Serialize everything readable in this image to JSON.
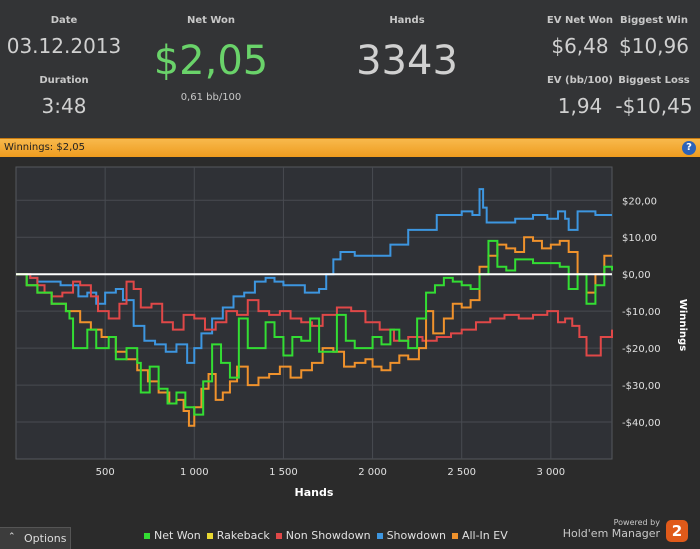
{
  "stats": {
    "date_label": "Date",
    "date_value": "03.12.2013",
    "duration_label": "Duration",
    "duration_value": "3:48",
    "net_won_label": "Net Won",
    "net_won_value": "$2,05",
    "bb_per_100": "0,61 bb/100",
    "hands_label": "Hands",
    "hands_value": "3343",
    "ev_net_won_label": "EV Net Won",
    "ev_net_won_value": "$6,48",
    "biggest_win_label": "Biggest Win",
    "biggest_win_value": "$10,96",
    "ev_bb_label": "EV (bb/100)",
    "ev_bb_value": "1,94",
    "biggest_loss_label": "Biggest Loss",
    "biggest_loss_value": "-$10,45"
  },
  "titlebar": {
    "text": "Winnings: $2,05",
    "help_icon": "?"
  },
  "options": {
    "label": "Options",
    "icon": "chevron-up-icon"
  },
  "brand": {
    "powered": "Powered by",
    "name": "Hold'em Manager",
    "logo": "2"
  },
  "colors": {
    "net_won": "#33dd33",
    "rakeback": "#e8d832",
    "non_showdown": "#e04848",
    "showdown": "#3d96e0",
    "all_in_ev": "#f0922c",
    "zero_line": "#ffffff",
    "plot_bg": "#2f3136"
  },
  "chart_data": {
    "type": "line",
    "xlabel": "Hands",
    "ylabel": "Winnings",
    "x_ticks": [
      500,
      1000,
      1500,
      2000,
      2500,
      3000
    ],
    "x_tick_labels": [
      "500",
      "1 000",
      "1 500",
      "2 000",
      "2 500",
      "3 000"
    ],
    "y_ticks": [
      20,
      10,
      0,
      -10,
      -20,
      -30,
      -40
    ],
    "y_tick_labels": [
      "$20,00",
      "$10,00",
      "$0,00",
      "-$10,00",
      "-$20,00",
      "-$30,00",
      "-$40,00"
    ],
    "xlim": [
      0,
      3343
    ],
    "ylim": [
      -50,
      29
    ],
    "grid": true,
    "legend_position": "bottom",
    "series": [
      {
        "name": "Net Won",
        "key": "net_won",
        "x": [
          0,
          60,
          120,
          200,
          280,
          300,
          320,
          400,
          450,
          520,
          560,
          620,
          680,
          700,
          750,
          800,
          850,
          900,
          950,
          1000,
          1050,
          1100,
          1150,
          1200,
          1250,
          1300,
          1400,
          1450,
          1500,
          1550,
          1600,
          1650,
          1700,
          1800,
          1850,
          1900,
          2000,
          2050,
          2100,
          2150,
          2200,
          2250,
          2300,
          2350,
          2400,
          2450,
          2500,
          2550,
          2600,
          2650,
          2700,
          2750,
          2800,
          2900,
          3000,
          3050,
          3100,
          3150,
          3200,
          3250,
          3300,
          3343
        ],
        "y": [
          0,
          -3,
          -5,
          -8,
          -10,
          -12,
          -20,
          -15,
          -20,
          -17,
          -23,
          -20,
          -24,
          -32,
          -25,
          -31,
          -35,
          -32,
          -36,
          -38,
          -29,
          -19,
          -24,
          -28,
          -12,
          -20,
          -13,
          -17,
          -22,
          -17,
          -18,
          -12,
          -21,
          -11,
          -18,
          -20,
          -17,
          -19,
          -15,
          -18,
          -20,
          -12,
          -5,
          -3,
          -1,
          -2,
          -3,
          -4,
          0,
          9,
          2,
          1,
          4,
          3,
          3,
          2,
          -4,
          0,
          -8,
          -3,
          2,
          1
        ]
      },
      {
        "name": "Rakeback",
        "key": "rakeback",
        "x": [
          0,
          3343
        ],
        "y": [
          0,
          0
        ]
      },
      {
        "name": "Non Showdown",
        "key": "non_showdown",
        "x": [
          0,
          40,
          80,
          120,
          160,
          200,
          260,
          320,
          360,
          420,
          460,
          520,
          580,
          620,
          660,
          700,
          760,
          820,
          880,
          940,
          1000,
          1060,
          1120,
          1180,
          1240,
          1300,
          1360,
          1420,
          1480,
          1540,
          1600,
          1660,
          1720,
          1800,
          1880,
          1960,
          2040,
          2120,
          2200,
          2280,
          2360,
          2440,
          2500,
          2580,
          2660,
          2740,
          2820,
          2900,
          2980,
          3040,
          3080,
          3120,
          3160,
          3200,
          3240,
          3280,
          3343
        ],
        "y": [
          0,
          0,
          -1,
          -3,
          -5,
          -6,
          -5,
          -2,
          -3,
          -6,
          -10,
          -12,
          -8,
          -2,
          -4,
          -9,
          -8,
          -13,
          -15,
          -11,
          -12,
          -15,
          -13,
          -10,
          -11,
          -7,
          -10,
          -11,
          -10,
          -12,
          -13,
          -14,
          -11,
          -9,
          -10,
          -13,
          -15,
          -18,
          -17,
          -18,
          -17,
          -16,
          -15,
          -13,
          -12,
          -11,
          -12,
          -11,
          -10,
          -13,
          -12,
          -14,
          -17,
          -22,
          -22,
          -17,
          -15
        ]
      },
      {
        "name": "Showdown",
        "key": "showdown",
        "x": [
          0,
          80,
          120,
          200,
          250,
          300,
          350,
          400,
          450,
          500,
          560,
          600,
          660,
          720,
          780,
          840,
          900,
          960,
          1000,
          1040,
          1100,
          1160,
          1220,
          1280,
          1340,
          1400,
          1450,
          1500,
          1560,
          1620,
          1700,
          1740,
          1780,
          1820,
          1900,
          2000,
          2100,
          2200,
          2300,
          2360,
          2400,
          2440,
          2500,
          2560,
          2600,
          2620,
          2640,
          2700,
          2800,
          2900,
          2980,
          3040,
          3080,
          3100,
          3150,
          3200,
          3250,
          3343
        ],
        "y": [
          0,
          -1,
          -2,
          -2,
          -3,
          -3,
          -6,
          -5,
          -8,
          -5,
          -4,
          -7,
          -14,
          -18,
          -19,
          -21,
          -19,
          -24,
          -20,
          -16,
          -12,
          -9,
          -6,
          -5,
          -2,
          -1,
          -2,
          -3,
          -3,
          -5,
          -4,
          0,
          4,
          6,
          5,
          5,
          8,
          12,
          12,
          16,
          16,
          16,
          17,
          16,
          23,
          18,
          14,
          14,
          15,
          16,
          15,
          17,
          15,
          12,
          17,
          17,
          16,
          16
        ]
      },
      {
        "name": "All-In EV",
        "key": "all_in_ev",
        "x": [
          0,
          60,
          120,
          200,
          280,
          360,
          420,
          480,
          560,
          620,
          680,
          740,
          800,
          860,
          900,
          940,
          970,
          1000,
          1040,
          1080,
          1120,
          1160,
          1200,
          1240,
          1300,
          1360,
          1420,
          1480,
          1540,
          1600,
          1660,
          1720,
          1780,
          1840,
          1900,
          1960,
          2000,
          2050,
          2100,
          2150,
          2200,
          2260,
          2300,
          2340,
          2400,
          2450,
          2500,
          2550,
          2600,
          2650,
          2700,
          2750,
          2800,
          2850,
          2900,
          2950,
          3000,
          3050,
          3100,
          3150,
          3200,
          3250,
          3300,
          3343
        ],
        "y": [
          0,
          -3,
          -5,
          -8,
          -10,
          -13,
          -15,
          -17,
          -21,
          -23,
          -26,
          -29,
          -32,
          -35,
          -34,
          -37,
          -41,
          -36,
          -31,
          -27,
          -34,
          -32,
          -29,
          -25,
          -30,
          -28,
          -27,
          -25,
          -28,
          -26,
          -24,
          -20,
          -21,
          -25,
          -24,
          -23,
          -25,
          -26,
          -24,
          -22,
          -23,
          -20,
          -10,
          -16,
          -12,
          -8,
          -9,
          -7,
          2,
          5,
          8,
          7,
          6,
          10,
          9,
          7,
          8,
          9,
          6,
          0,
          -5,
          0,
          5,
          5
        ]
      }
    ]
  }
}
